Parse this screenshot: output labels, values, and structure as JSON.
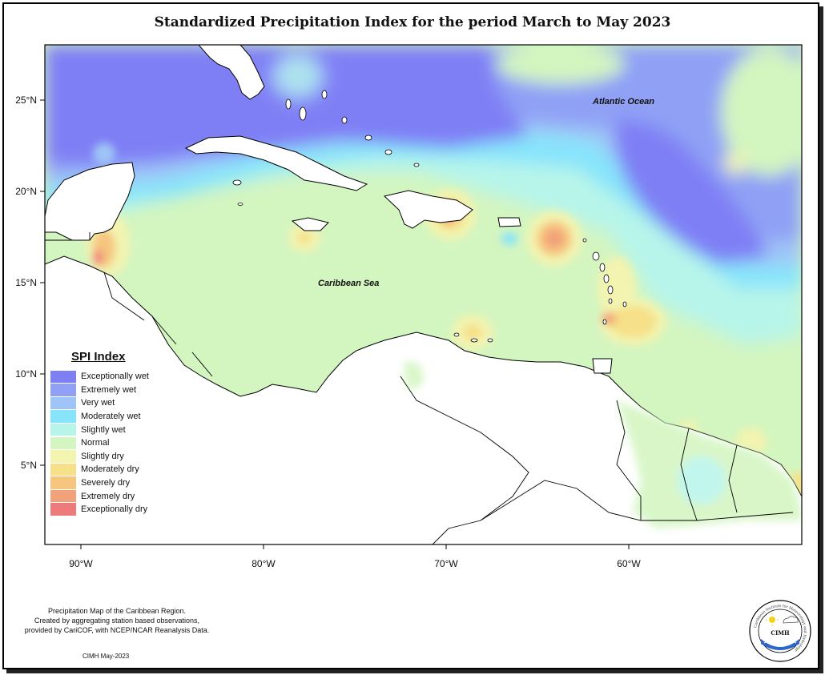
{
  "title": "Standardized Precipitation Index for the period March to May 2023",
  "colors": {
    "exceptionally_wet": "#7f7ff5",
    "extremely_wet": "#8fa0f5",
    "very_wet": "#9fc4f7",
    "moderately_wet": "#88e4fb",
    "slightly_wet": "#b7f5ea",
    "normal": "#d3f5c0",
    "slightly_dry": "#f2f4b0",
    "moderately_dry": "#f6e089",
    "severely_dry": "#f6c57e",
    "extremely_dry": "#f2a27a",
    "exceptionally_dry": "#ee7b7b"
  },
  "map": {
    "lat_ticks": [
      "25°N",
      "20°N",
      "15°N",
      "10°N",
      "5°N"
    ],
    "lon_ticks": [
      "90°W",
      "80°W",
      "70°W",
      "60°W"
    ],
    "labels": {
      "atlantic": "Atlantic Ocean",
      "caribbean": "Caribbean Sea"
    }
  },
  "legend": {
    "title": "SPI Index",
    "items": [
      {
        "label": "Exceptionally wet",
        "color": "#7f7ff5"
      },
      {
        "label": "Extremely wet",
        "color": "#8fa0f5"
      },
      {
        "label": "Very wet",
        "color": "#9fc4f7"
      },
      {
        "label": "Moderately wet",
        "color": "#88e4fb"
      },
      {
        "label": "Slightly wet",
        "color": "#b7f5ea"
      },
      {
        "label": "Normal",
        "color": "#d3f5c0"
      },
      {
        "label": "Slightly dry",
        "color": "#f2f4b0"
      },
      {
        "label": "Moderately dry",
        "color": "#f6e089"
      },
      {
        "label": "Severely dry",
        "color": "#f6c57e"
      },
      {
        "label": "Extremely dry",
        "color": "#f2a27a"
      },
      {
        "label": "Exceptionally dry",
        "color": "#ee7b7b"
      }
    ]
  },
  "footnote": {
    "line1": "Precipitation Map of the Caribbean Region.",
    "line2": "Created by aggregating station based observations,",
    "line3": "provided by CariCOF, with NCEP/NCAR Reanalysis Data."
  },
  "credit": "CIMH May-2023",
  "logo": {
    "text": "CIMH",
    "ring_text": "Caribbean Institute for Meteorology and Hydrology"
  }
}
